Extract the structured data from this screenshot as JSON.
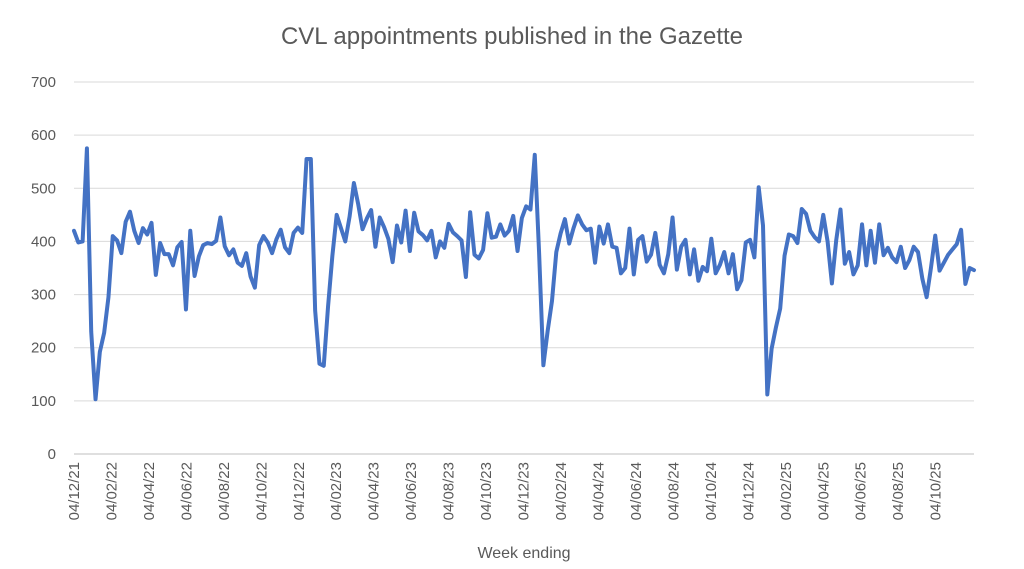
{
  "chart_data": {
    "type": "line",
    "title": "CVL appointments published in the Gazette",
    "xlabel": "Week ending",
    "ylabel": "",
    "ylim": [
      0,
      700
    ],
    "yticks": [
      0,
      100,
      200,
      300,
      400,
      500,
      600,
      700
    ],
    "x_tick_labels": [
      "04/12/21",
      "04/02/22",
      "04/04/22",
      "04/06/22",
      "04/08/22",
      "04/10/22",
      "04/12/22",
      "04/02/23",
      "04/04/23",
      "04/06/23",
      "04/08/23",
      "04/10/23",
      "04/12/23",
      "04/02/24",
      "04/04/24",
      "04/06/24",
      "04/08/24",
      "04/10/24",
      "04/12/24",
      "04/02/25",
      "04/04/25",
      "04/06/25",
      "04/08/25",
      "04/10/25"
    ],
    "x_tick_step_weeks": 8.7,
    "grid": true,
    "legend": "none",
    "series": [
      {
        "color": "#4472c4",
        "values": [
          420,
          398,
          400,
          575,
          230,
          103,
          192,
          228,
          295,
          410,
          402,
          378,
          437,
          456,
          420,
          397,
          425,
          413,
          435,
          337,
          397,
          376,
          376,
          355,
          389,
          399,
          272,
          420,
          335,
          372,
          393,
          397,
          395,
          401,
          445,
          391,
          374,
          385,
          360,
          354,
          378,
          334,
          313,
          393,
          410,
          398,
          378,
          404,
          422,
          389,
          378,
          416,
          426,
          416,
          555,
          555,
          270,
          170,
          166,
          278,
          373,
          450,
          425,
          400,
          447,
          510,
          470,
          423,
          443,
          459,
          390,
          445,
          427,
          405,
          361,
          430,
          398,
          458,
          382,
          454,
          419,
          412,
          402,
          420,
          370,
          400,
          388,
          433,
          417,
          410,
          402,
          333,
          455,
          375,
          368,
          384,
          453,
          407,
          409,
          432,
          411,
          420,
          448,
          382,
          444,
          466,
          460,
          563,
          380,
          167,
          232,
          288,
          380,
          415,
          442,
          396,
          425,
          449,
          432,
          421,
          424,
          360,
          428,
          396,
          432,
          390,
          388,
          340,
          350,
          424,
          338,
          403,
          410,
          362,
          375,
          416,
          356,
          340,
          376,
          445,
          347,
          390,
          403,
          338,
          385,
          326,
          352,
          344,
          405,
          340,
          356,
          380,
          340,
          376,
          310,
          327,
          398,
          403,
          370,
          502,
          430,
          112,
          198,
          238,
          274,
          373,
          413,
          410,
          397,
          461,
          452,
          420,
          408,
          400,
          450,
          400,
          321,
          402,
          460,
          358,
          380,
          338,
          355,
          432,
          355,
          420,
          360,
          432,
          374,
          388,
          370,
          361,
          390,
          350,
          365,
          390,
          380,
          330,
          295,
          350,
          411,
          345,
          360,
          375,
          385,
          395,
          422,
          320,
          350,
          346
        ]
      }
    ]
  }
}
